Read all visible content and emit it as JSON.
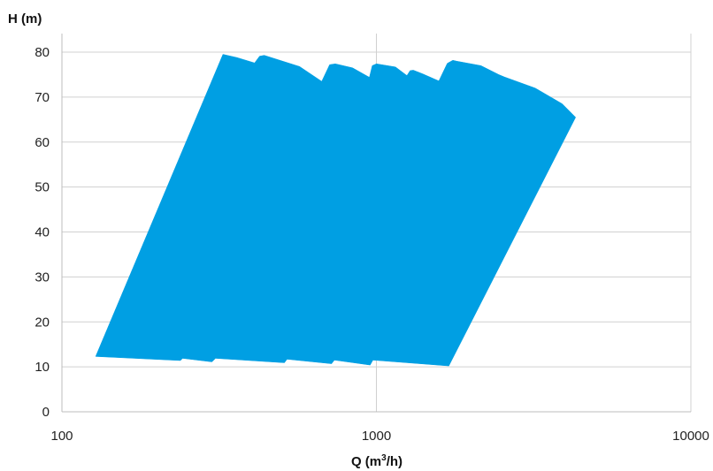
{
  "chart_data": {
    "type": "area",
    "title": "",
    "ylabel": "H (m)",
    "xlabel_main": "Q (m",
    "xlabel_sup": "3",
    "xlabel_tail": "/h)",
    "x_scale": "log",
    "xlim": [
      100,
      10000
    ],
    "ylim": [
      0,
      80
    ],
    "x_ticks": [
      100,
      1000,
      10000
    ],
    "x_tick_labels": [
      "100",
      "1000",
      "10000"
    ],
    "y_ticks": [
      0,
      10,
      20,
      30,
      40,
      50,
      60,
      70,
      80
    ],
    "y_tick_labels": [
      "0",
      "10",
      "20",
      "30",
      "40",
      "50",
      "60",
      "70",
      "80"
    ],
    "grid": true,
    "legend": "none",
    "fill_color": "#009fe3",
    "envelope": [
      {
        "q": 128,
        "h": 12.3
      },
      {
        "q": 238,
        "h": 11.4
      },
      {
        "q": 242,
        "h": 11.9
      },
      {
        "q": 300,
        "h": 11.1
      },
      {
        "q": 308,
        "h": 11.9
      },
      {
        "q": 510,
        "h": 10.9
      },
      {
        "q": 520,
        "h": 11.7
      },
      {
        "q": 720,
        "h": 10.7
      },
      {
        "q": 735,
        "h": 11.5
      },
      {
        "q": 955,
        "h": 10.4
      },
      {
        "q": 975,
        "h": 11.5
      },
      {
        "q": 1700,
        "h": 10.2
      },
      {
        "q": 4300,
        "h": 65.5
      },
      {
        "q": 3900,
        "h": 68.5
      },
      {
        "q": 3200,
        "h": 72.0
      },
      {
        "q": 2550,
        "h": 74.5
      },
      {
        "q": 2450,
        "h": 75.0
      },
      {
        "q": 2150,
        "h": 77.0
      },
      {
        "q": 1800,
        "h": 78.0
      },
      {
        "q": 1750,
        "h": 78.2
      },
      {
        "q": 1680,
        "h": 77.5
      },
      {
        "q": 1580,
        "h": 73.6
      },
      {
        "q": 1400,
        "h": 75.2
      },
      {
        "q": 1310,
        "h": 76.0
      },
      {
        "q": 1280,
        "h": 75.9
      },
      {
        "q": 1250,
        "h": 74.8
      },
      {
        "q": 1150,
        "h": 76.7
      },
      {
        "q": 1000,
        "h": 77.4
      },
      {
        "q": 970,
        "h": 77.0
      },
      {
        "q": 950,
        "h": 74.4
      },
      {
        "q": 840,
        "h": 76.5
      },
      {
        "q": 740,
        "h": 77.4
      },
      {
        "q": 710,
        "h": 77.2
      },
      {
        "q": 670,
        "h": 73.5
      },
      {
        "q": 570,
        "h": 76.8
      },
      {
        "q": 440,
        "h": 79.3
      },
      {
        "q": 425,
        "h": 79.1
      },
      {
        "q": 410,
        "h": 77.6
      },
      {
        "q": 360,
        "h": 78.8
      },
      {
        "q": 325,
        "h": 79.5
      }
    ]
  }
}
